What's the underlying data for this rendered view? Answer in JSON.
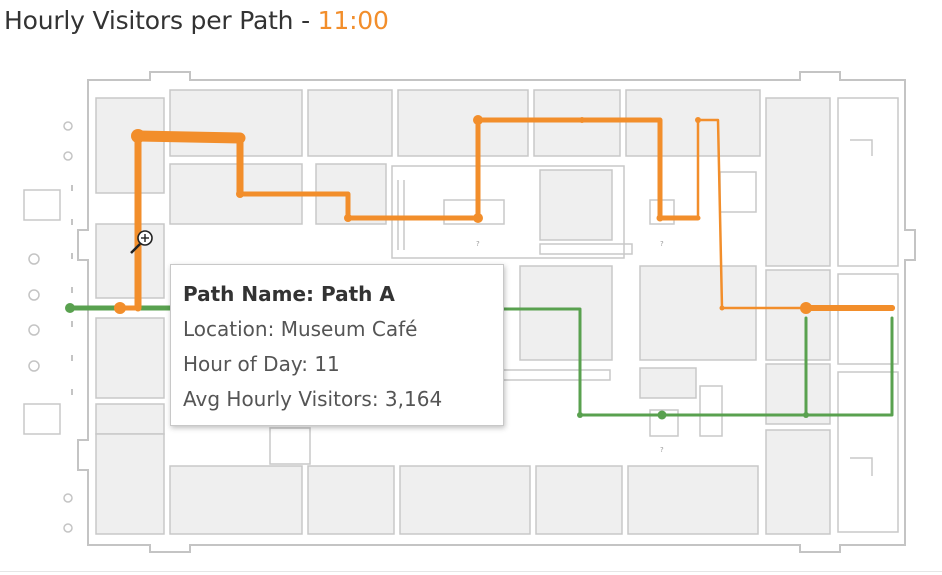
{
  "header": {
    "title": "Hourly Visitors per Path",
    "separator": " - ",
    "hour": "11:00"
  },
  "colors": {
    "path_a": "#f28e2b",
    "path_b": "#59a14f",
    "floorplan_stroke": "#bdbdbd",
    "floorplan_fill": "#efefef"
  },
  "tooltip": {
    "path_name_label": "Path Name:",
    "path_name_value": "Path A",
    "location_label": "Location:",
    "location_value": "Museum Café",
    "hour_label": "Hour of Day:",
    "hour_value": "11",
    "avg_label": "Avg Hourly Visitors:",
    "avg_value": "3,164"
  },
  "cursor": {
    "icon": "zoom-in-icon"
  }
}
